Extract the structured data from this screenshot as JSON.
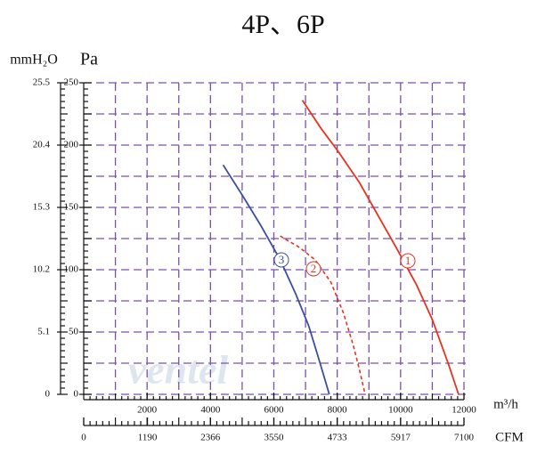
{
  "chart_data": {
    "type": "line",
    "title": "4P、6P",
    "ylabel": "Pa",
    "y2label": "mmH₂O",
    "xlabel": "m³/h",
    "x2label": "CFM",
    "watermark": "ventel",
    "xlim": [
      0,
      12000
    ],
    "xticks": [
      2000,
      4000,
      6000,
      8000,
      10000,
      12000
    ],
    "x2lim": [
      0,
      7100
    ],
    "x2ticks": [
      0,
      1190,
      2366,
      3550,
      4733,
      5917,
      7100
    ],
    "ylim": [
      0,
      250
    ],
    "yticks": [
      0,
      50,
      100,
      150,
      200,
      250
    ],
    "y2lim": [
      0,
      25.5
    ],
    "y2ticks": [
      0,
      5.1,
      10.2,
      15.3,
      20.4,
      25.5
    ],
    "grid": true,
    "grid_color": "#7b4fb0",
    "series": [
      {
        "name": "1",
        "color": "#e8321e",
        "dashed": false,
        "x": [
          6900,
          7500,
          8000,
          8700,
          9300,
          9900,
          10500,
          11000,
          11500,
          11830
        ],
        "values": [
          236,
          213,
          196,
          170,
          143,
          116,
          88,
          60,
          25,
          0
        ]
      },
      {
        "name": "2",
        "color": "#e8321e",
        "dashed": true,
        "x": [
          6200,
          6800,
          7300,
          7800,
          8200,
          8500,
          8700,
          8880
        ],
        "values": [
          127,
          118,
          108,
          90,
          65,
          40,
          20,
          0
        ]
      },
      {
        "name": "3",
        "color": "#3a4fa0",
        "dashed": false,
        "x": [
          4400,
          5000,
          5600,
          6200,
          6700,
          7100,
          7400,
          7750
        ],
        "values": [
          184,
          160,
          135,
          108,
          80,
          55,
          30,
          0
        ]
      }
    ]
  }
}
